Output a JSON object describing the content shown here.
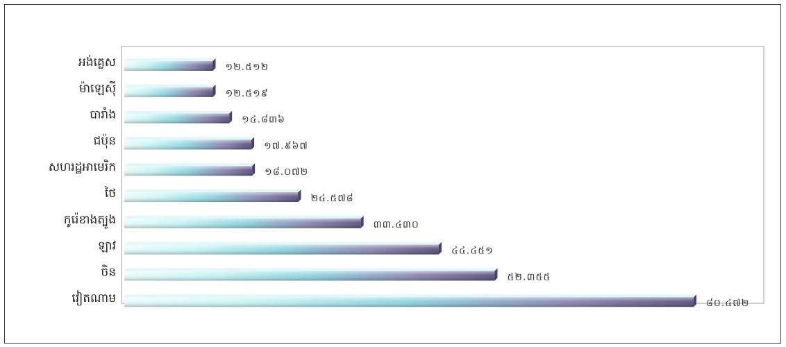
{
  "chart_data": {
    "type": "bar",
    "orientation": "horizontal",
    "categories": [
      "អង់គ្លេស",
      "ម៉ាឡេស៊ី",
      "បារាំង",
      "ជប៉ុន",
      "សហរដ្ឋអាមេរិក",
      "ថៃ",
      "កូរ៉េខាងត្បូង",
      "ឡាវ",
      "ចិន",
      "វៀតណាម"
    ],
    "values": [
      12512,
      12519,
      14836,
      17967,
      18072,
      24578,
      33430,
      44451,
      52355,
      80472
    ],
    "value_labels": [
      "១២.៥១២",
      "១២.៥១៩",
      "១៤.៨៣៦",
      "១៧.៩៦៧",
      "១៨.០៧២",
      "២៤.៥៧៨",
      "៣៣.៤៣០",
      "៤៤.៤៥១",
      "៥២.៣៥៥",
      "៨០.៤៧២"
    ],
    "xlim": [
      0,
      80472
    ],
    "grid": false,
    "legend": "none",
    "colors": {
      "bar_light": "#c8f4f4",
      "bar_mid": "#8fd4e0",
      "bar_dark": "#5a4f7c",
      "plot_border": "#a0a0a0",
      "frame_border": "#3a3a3a"
    }
  }
}
